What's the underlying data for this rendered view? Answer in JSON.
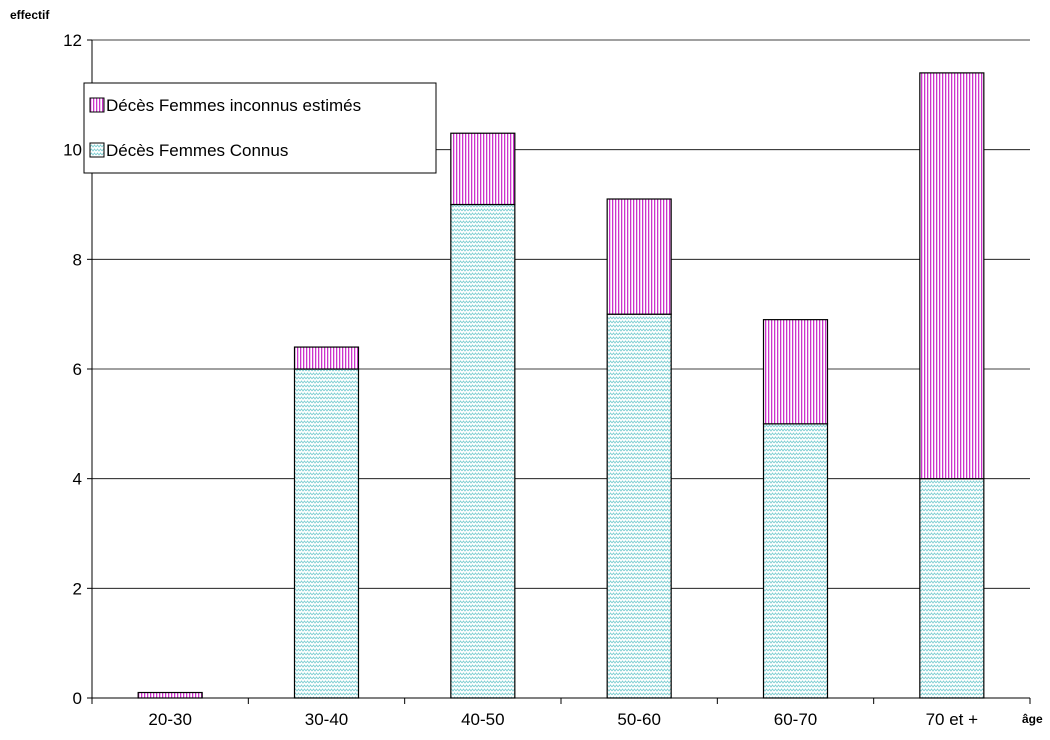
{
  "chart_data": {
    "type": "bar",
    "stacked": true,
    "ylabel": "effectif",
    "xlabel": "âge",
    "ylim": [
      0,
      12
    ],
    "yticks": [
      0,
      2,
      4,
      6,
      8,
      10,
      12
    ],
    "grid": true,
    "legend_position": "top-left",
    "categories": [
      "20-30",
      "30-40",
      "40-50",
      "50-60",
      "60-70",
      "70 et +"
    ],
    "series": [
      {
        "name": "Décès Femmes Connus",
        "values": [
          0,
          6,
          9,
          7,
          5,
          4
        ],
        "color": "#c8ecee",
        "pattern": "zigzag"
      },
      {
        "name": "Décès Femmes inconnus estimés",
        "values": [
          0.1,
          0.4,
          1.3,
          2.1,
          1.9,
          7.4
        ],
        "color": "#cc33cc",
        "pattern": "vertical-stripes"
      }
    ]
  }
}
